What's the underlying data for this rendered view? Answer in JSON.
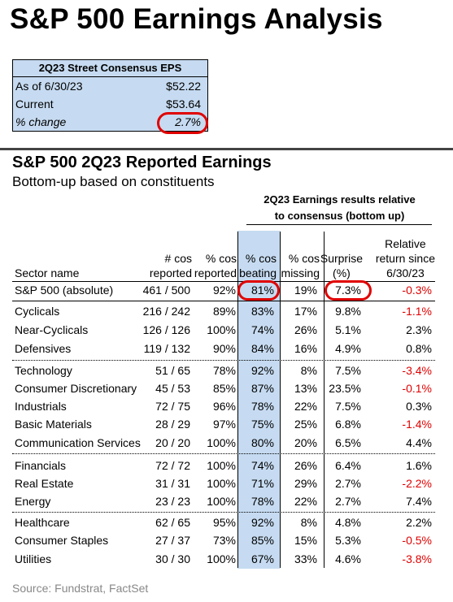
{
  "title": "S&P 500 Earnings Analysis",
  "eps_box": {
    "header": "2Q23 Street Consensus EPS",
    "rows": [
      {
        "label": "As of 6/30/23",
        "value": "$52.22"
      },
      {
        "label": "Current",
        "value": "$53.64"
      },
      {
        "label": "% change",
        "value": "2.7%"
      }
    ]
  },
  "section_title": "S&P 500 2Q23 Reported Earnings",
  "section_subtitle": "Bottom-up based on constituents",
  "relative_header": [
    "2Q23 Earnings results relative",
    "to consensus (bottom up)"
  ],
  "columns": {
    "sector": [
      "Sector name"
    ],
    "reported": [
      "# cos",
      "reported"
    ],
    "pct_reported": [
      "% cos",
      "reported"
    ],
    "pct_beating": [
      "% cos",
      "beating"
    ],
    "pct_missing": [
      "% cos",
      "missing"
    ],
    "surprise": [
      "Surprise",
      "(%)"
    ],
    "relative_return": [
      "Relative",
      "return since",
      "6/30/23"
    ]
  },
  "rows": [
    {
      "sector": "S&P 500 (absolute)",
      "reported": "461 / 500",
      "pct_reported": "92%",
      "pct_beating": "81%",
      "pct_missing": "19%",
      "surprise": "7.3%",
      "relative_return": "-0.3%"
    },
    {
      "sector": "Cyclicals",
      "reported": "216 / 242",
      "pct_reported": "89%",
      "pct_beating": "83%",
      "pct_missing": "17%",
      "surprise": "9.8%",
      "relative_return": "-1.1%"
    },
    {
      "sector": "Near-Cyclicals",
      "reported": "126 / 126",
      "pct_reported": "100%",
      "pct_beating": "74%",
      "pct_missing": "26%",
      "surprise": "5.1%",
      "relative_return": "2.3%"
    },
    {
      "sector": "Defensives",
      "reported": "119 / 132",
      "pct_reported": "90%",
      "pct_beating": "84%",
      "pct_missing": "16%",
      "surprise": "4.9%",
      "relative_return": "0.8%"
    },
    {
      "sector": "Technology",
      "reported": "51 / 65",
      "pct_reported": "78%",
      "pct_beating": "92%",
      "pct_missing": "8%",
      "surprise": "7.5%",
      "relative_return": "-3.4%"
    },
    {
      "sector": "Consumer Discretionary",
      "reported": "45 / 53",
      "pct_reported": "85%",
      "pct_beating": "87%",
      "pct_missing": "13%",
      "surprise": "23.5%",
      "relative_return": "-0.1%"
    },
    {
      "sector": "Industrials",
      "reported": "72 / 75",
      "pct_reported": "96%",
      "pct_beating": "78%",
      "pct_missing": "22%",
      "surprise": "7.5%",
      "relative_return": "0.3%"
    },
    {
      "sector": "Basic Materials",
      "reported": "28 / 29",
      "pct_reported": "97%",
      "pct_beating": "75%",
      "pct_missing": "25%",
      "surprise": "6.8%",
      "relative_return": "-1.4%"
    },
    {
      "sector": "Communication Services",
      "reported": "20 / 20",
      "pct_reported": "100%",
      "pct_beating": "80%",
      "pct_missing": "20%",
      "surprise": "6.5%",
      "relative_return": "4.4%"
    },
    {
      "sector": "Financials",
      "reported": "72 / 72",
      "pct_reported": "100%",
      "pct_beating": "74%",
      "pct_missing": "26%",
      "surprise": "6.4%",
      "relative_return": "1.6%"
    },
    {
      "sector": "Real Estate",
      "reported": "31 / 31",
      "pct_reported": "100%",
      "pct_beating": "71%",
      "pct_missing": "29%",
      "surprise": "2.7%",
      "relative_return": "-2.2%"
    },
    {
      "sector": "Energy",
      "reported": "23 / 23",
      "pct_reported": "100%",
      "pct_beating": "78%",
      "pct_missing": "22%",
      "surprise": "2.7%",
      "relative_return": "7.4%"
    },
    {
      "sector": "Healthcare",
      "reported": "62 / 65",
      "pct_reported": "95%",
      "pct_beating": "92%",
      "pct_missing": "8%",
      "surprise": "4.8%",
      "relative_return": "2.2%"
    },
    {
      "sector": "Consumer Staples",
      "reported": "27 / 37",
      "pct_reported": "73%",
      "pct_beating": "85%",
      "pct_missing": "15%",
      "surprise": "5.3%",
      "relative_return": "-0.5%"
    },
    {
      "sector": "Utilities",
      "reported": "30 / 30",
      "pct_reported": "100%",
      "pct_beating": "67%",
      "pct_missing": "33%",
      "surprise": "4.6%",
      "relative_return": "-3.8%"
    }
  ],
  "source": "Source: Fundstrat, FactSet",
  "colors": {
    "highlight_band": "#c6dbf1",
    "negative": "#e00000",
    "circle": "#e00000"
  }
}
